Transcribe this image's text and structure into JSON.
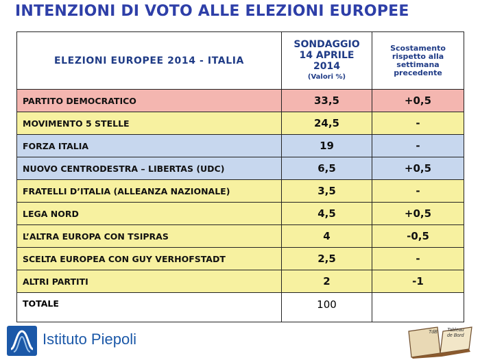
{
  "title": "INTENZIONI DI VOTO ALLE ELEZIONI EUROPEE",
  "table": {
    "header": {
      "main": "ELEZIONI EUROPEE 2014 - ITALIA",
      "poll_line1": "SONDAGGIO",
      "poll_line2": "14 APRILE",
      "poll_line3": "2014",
      "poll_line4": "(Valori %)",
      "diff_line1": "Scostamento",
      "diff_line2": "rispetto alla",
      "diff_line3": "settimana",
      "diff_line4": "precedente"
    },
    "rows": [
      {
        "party": "PARTITO DEMOCRATICO",
        "value": "33,5",
        "diff": "+0,5",
        "color": "#f4b6b0"
      },
      {
        "party": "MOVIMENTO 5 STELLE",
        "value": "24,5",
        "diff": "-",
        "color": "#f7f1a0"
      },
      {
        "party": "FORZA ITALIA",
        "value": "19",
        "diff": "-",
        "color": "#c7d7ee"
      },
      {
        "party": "NUOVO CENTRODESTRA – LIBERTAS (UDC)",
        "value": "6,5",
        "diff": "+0,5",
        "color": "#c7d7ee"
      },
      {
        "party": "FRATELLI D’ITALIA (ALLEANZA NAZIONALE)",
        "value": "3,5",
        "diff": "-",
        "color": "#f7f1a0"
      },
      {
        "party": "LEGA NORD",
        "value": "4,5",
        "diff": "+0,5",
        "color": "#f7f1a0"
      },
      {
        "party": "L’ALTRA EUROPA CON TSIPRAS",
        "value": "4",
        "diff": "-0,5",
        "color": "#f7f1a0"
      },
      {
        "party": "SCELTA EUROPEA CON GUY VERHOFSTADT",
        "value": "2,5",
        "diff": "-",
        "color": "#f7f1a0"
      },
      {
        "party": "ALTRI PARTITI",
        "value": "2",
        "diff": "-1",
        "color": "#f7f1a0"
      }
    ],
    "total": {
      "label": "TOTALE",
      "value": "100",
      "diff": ""
    }
  },
  "footer": {
    "logo_left_text": "Istituto Piepoli",
    "logo_right_text1": "TdB",
    "logo_right_text2": "Tableau de Bord"
  }
}
